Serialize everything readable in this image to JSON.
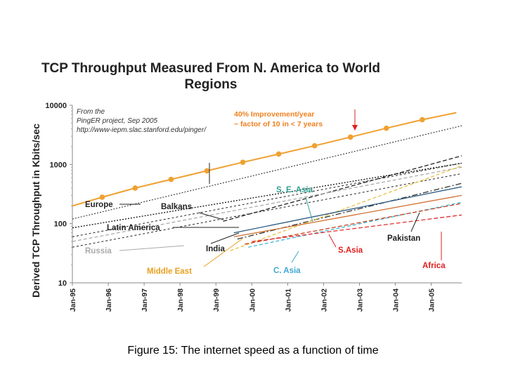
{
  "caption": "Figure 15: The internet speed as a function of time",
  "colors": {
    "europe": "#f0a030",
    "balkans": "#222222",
    "latin_america": "#111111",
    "russia": "#aaaaaa",
    "india": "#333333",
    "middle_east": "#e8c040",
    "se_asia": "#2a5a80",
    "c_asia": "#40b8d8",
    "s_asia": "#d07030",
    "pakistan": "#c84020",
    "africa": "#e03030",
    "trend": "#333333",
    "annotation_orange": "#f08020",
    "annotation_teal": "#30a090",
    "annotation_blue": "#40a8d0",
    "annotation_gold": "#e8a020",
    "annotation_red": "#e02020"
  },
  "chart_data": {
    "type": "line",
    "title": "TCP Throughput Measured From N. America to World Regions",
    "xlabel": "",
    "ylabel": "Derived TCP Throughput in Kbits/sec",
    "y_scale": "log",
    "ylim": [
      10,
      10000
    ],
    "y_ticks": [
      "10",
      "100",
      "1000",
      "10000"
    ],
    "x_ticks": [
      "Jan-95",
      "Jan-96",
      "Jan-97",
      "Jan-98",
      "Jan-99",
      "Jan-00",
      "Jan-01",
      "Jan-02",
      "Jan-03",
      "Jan-04",
      "Jan-05"
    ],
    "xlim": [
      1995.0,
      2005.85
    ],
    "grid": false,
    "source_note": [
      "From the",
      "PingER project, Sep 2005",
      "http://www-iepm.slac.stanford.edu/pinger/"
    ],
    "annotation": [
      "40% Improvement/year",
      "~ factor of 10 in < 7 years"
    ],
    "series": [
      {
        "name": "Europe",
        "x": [
          1995.0,
          1995.83,
          1996.75,
          1997.75,
          1998.75,
          1999.75,
          2000.75,
          2001.75,
          2002.75,
          2003.75,
          2004.75,
          2005.7
        ],
        "y": [
          200,
          280,
          400,
          560,
          780,
          1090,
          1500,
          2070,
          2900,
          4100,
          5700,
          7500
        ]
      },
      {
        "name": "Balkans",
        "x": [
          1999.2,
          2005.85
        ],
        "y": [
          110,
          1400
        ]
      },
      {
        "name": "Latin America",
        "x": [
          1995.0,
          2005.85
        ],
        "y": [
          85,
          1050
        ]
      },
      {
        "name": "Russia",
        "x": [
          1995.0,
          2005.85
        ],
        "y": [
          50,
          900
        ]
      },
      {
        "name": "India",
        "x": [
          1999.6,
          2005.85
        ],
        "y": [
          55,
          480
        ]
      },
      {
        "name": "Middle East",
        "x": [
          1999.4,
          2005.85
        ],
        "y": [
          35,
          950
        ]
      },
      {
        "name": "S. E. Asia",
        "x": [
          1999.5,
          2005.85
        ],
        "y": [
          70,
          420
        ]
      },
      {
        "name": "C. Asia",
        "x": [
          1999.9,
          2005.85
        ],
        "y": [
          40,
          230
        ]
      },
      {
        "name": "S.Asia",
        "x": [
          1999.5,
          2005.85
        ],
        "y": [
          60,
          300
        ]
      },
      {
        "name": "Pakistan",
        "x": [
          1999.8,
          2005.85
        ],
        "y": [
          45,
          220
        ]
      },
      {
        "name": "Africa",
        "x": [
          2000.0,
          2005.85
        ],
        "y": [
          50,
          140
        ]
      }
    ],
    "trend_lines": [
      {
        "x": [
          1995.0,
          2005.85
        ],
        "y": [
          120,
          4500
        ]
      },
      {
        "x": [
          1995.0,
          2005.85
        ],
        "y": [
          60,
          1050
        ]
      },
      {
        "x": [
          1995.0,
          2005.85
        ],
        "y": [
          40,
          700
        ]
      }
    ],
    "labels": [
      "Europe",
      "Balkans",
      "Latin America",
      "Russia",
      "India",
      "Middle East",
      "S. E. Asia",
      "C. Asia",
      "S.Asia",
      "Pakistan",
      "Africa"
    ]
  }
}
